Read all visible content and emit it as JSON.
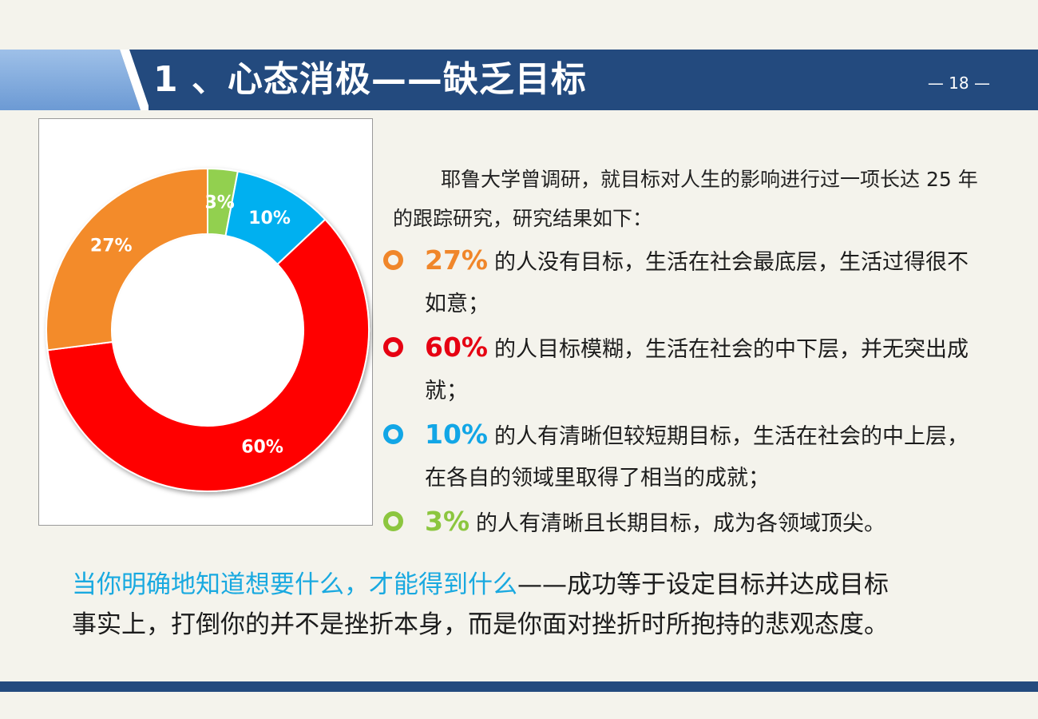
{
  "header": {
    "title": "1 、心态消极——缺乏目标",
    "page_number": "— 18 —"
  },
  "intro": {
    "text": "耶鲁大学曾调研，就目标对人生的影响进行过一项长达 25 年的跟踪研究，研究结果如下："
  },
  "bullets": [
    {
      "pct": "27%",
      "text": "的人没有目标，生活在社会最底层，生活过得很不如意；",
      "color": "#f0862a"
    },
    {
      "pct": "60%",
      "text": "的人目标模糊，生活在社会的中下层，并无突出成就；",
      "color": "#e60012"
    },
    {
      "pct": "10%",
      "text": "的人有清晰但较短期目标，生活在社会的中上层，在各自的领域里取得了相当的成就；",
      "color": "#12a6e6"
    },
    {
      "pct": "3%",
      "text": "的人有清晰且长期目标，成为各领域顶尖。",
      "color": "#8cc63f"
    }
  ],
  "footer": {
    "highlight": "当你明确地知道想要什么，才能得到什么",
    "rest": "——成功等于设定目标并达成目标",
    "line2": "事实上，打倒你的并不是挫折本身，而是你面对挫折时所抱持的悲观态度。"
  },
  "chart_data": {
    "type": "pie",
    "style": "donut",
    "categories": [
      "3%",
      "10%",
      "60%",
      "27%"
    ],
    "values": [
      3,
      10,
      60,
      27
    ],
    "labels": [
      "3%",
      "10%",
      "60%",
      "27%"
    ],
    "colors": [
      "#92d050",
      "#00b0f0",
      "#ff0000",
      "#f38b2c"
    ],
    "start": "top",
    "direction": "clockwise"
  }
}
